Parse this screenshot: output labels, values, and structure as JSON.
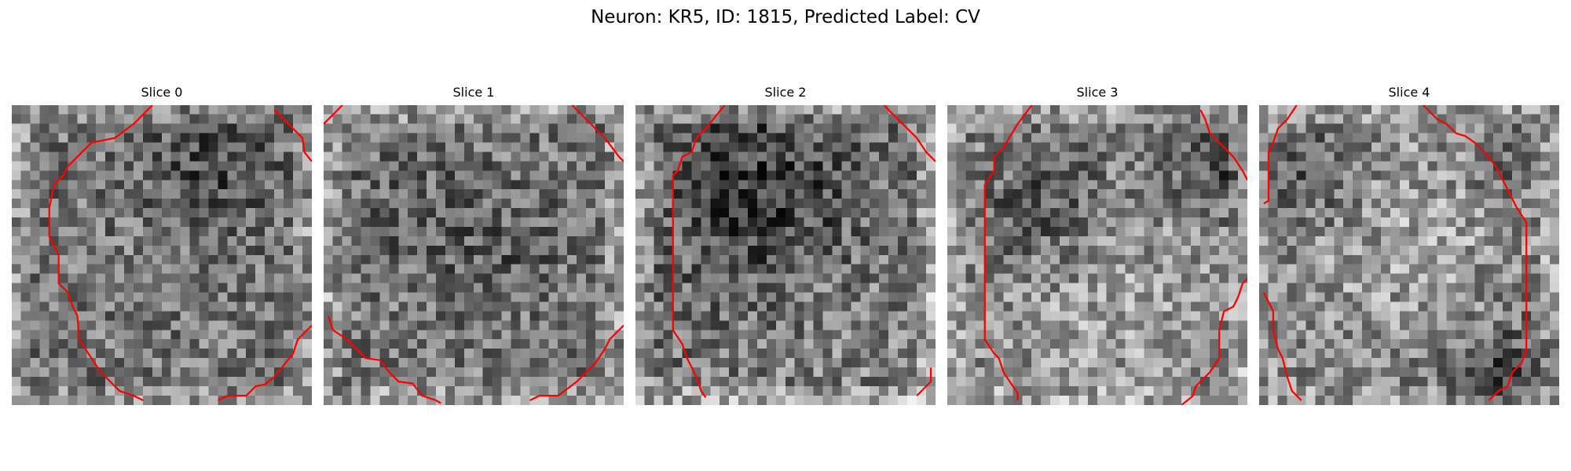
{
  "figure": {
    "title": "Neuron: KR5, ID: 1815, Predicted Label: CV"
  },
  "slices": [
    {
      "title": "Slice 0"
    },
    {
      "title": "Slice 1"
    },
    {
      "title": "Slice 2"
    },
    {
      "title": "Slice 3"
    },
    {
      "title": "Slice 4"
    }
  ],
  "colors": {
    "contour": "#ff0000",
    "colormap": "gray"
  }
}
